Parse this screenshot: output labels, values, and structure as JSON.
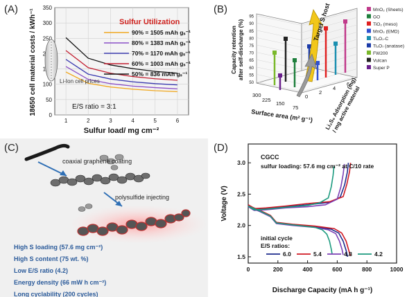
{
  "panel_a": {
    "letter": "(A)",
    "ylabel": "18650 cell material costs / kWh⁻¹",
    "xlabel": "Sulfur load/ mg cm⁻²",
    "legend_title": "Sulfur Utilization",
    "liion_label": "Li-Ion cell prices",
    "es_ratio": "E/S ratio = 3:1",
    "xticks": [
      "1",
      "2",
      "3",
      "4",
      "5",
      "6"
    ],
    "yticks": [
      "0",
      "50",
      "100",
      "150",
      "200",
      "250",
      "300",
      "350"
    ]
  },
  "panel_b": {
    "letter": "(B)",
    "zlabel_1": "Capacity retention",
    "zlabel_2": "after self-discharge (%)",
    "xlabel": "Surface area (m² g⁻¹)",
    "ylabel_1": "Li₂S₆ Adsorption (mg)",
    "ylabel_2": "/ mg active material",
    "target_label": "Target S host",
    "zticks": [
      "50",
      "55",
      "60",
      "65",
      "70",
      "75",
      "80",
      "85",
      "90",
      "95"
    ],
    "xticks": [
      "300",
      "225",
      "150",
      "75"
    ],
    "yticks": [
      "0",
      "2",
      "4",
      "6"
    ],
    "legend": [
      {
        "label": "MnO₂ (Sheets)",
        "color": "#c0398a"
      },
      {
        "label": "GO",
        "color": "#1e7f3c"
      },
      {
        "label": "TiO₂ (meso)",
        "color": "#e02020"
      },
      {
        "label": "MnO₂ (EMD)",
        "color": "#3050d0"
      },
      {
        "label": "Ti₄O₇-C",
        "color": "#1a8fb0"
      },
      {
        "label": "Ti₄O₇ (anatase)",
        "color": "#1a3aa8"
      },
      {
        "label": "FW200",
        "color": "#7ab82a"
      },
      {
        "label": "Vulcan",
        "color": "#222222"
      },
      {
        "label": "Super P",
        "color": "#6a1f8c"
      }
    ]
  },
  "panel_c": {
    "letter": "(C)",
    "step1": "coaxial graphene coating",
    "step2": "polysulfide injecting",
    "features": [
      "High S loading (57.6 mg cm⁻²)",
      "High S content (75 wt. %)",
      "Low E/S ratio (4.2)",
      "Energy density (66 mW h cm⁻²)",
      "Long cyclability (200 cycles)"
    ]
  },
  "panel_d": {
    "letter": "(D)",
    "title": "CGCC",
    "subtitle": "sulfur loading: 57.6 mg cm⁻² at C/10 rate",
    "legend_title_1": "initial cycle",
    "legend_title_2": "E/S ratios:",
    "xlabel": "Discharge Capacity (mA h g⁻¹)",
    "ylabel": "Voltage (V)",
    "xticks": [
      "0",
      "200",
      "400",
      "600",
      "800",
      "1000"
    ],
    "yticks": [
      "1.5",
      "2.0",
      "2.5",
      "3.0"
    ]
  },
  "chart_data": [
    {
      "type": "line",
      "panel": "A",
      "title": "",
      "xlabel": "Sulfur load/ mg cm⁻²",
      "ylabel": "18650 cell material costs / kWh⁻¹",
      "xlim": [
        0.5,
        6.5
      ],
      "ylim": [
        0,
        350
      ],
      "x": [
        1,
        2,
        3,
        4,
        5,
        6
      ],
      "series": [
        {
          "name": "50% = 836 mAh gₛ⁻¹",
          "color": "#111111",
          "values": [
            252,
            185,
            163,
            151,
            142,
            136
          ]
        },
        {
          "name": "60% = 1003 mAh gₛ⁻¹",
          "color": "#c21d2f",
          "values": [
            210,
            154,
            136,
            125,
            118,
            113
          ]
        },
        {
          "name": "70% = 1170 mAh gₛ⁻¹",
          "color": "#3b3bb0",
          "values": [
            181,
            133,
            117,
            108,
            102,
            98
          ]
        },
        {
          "name": "80% = 1383 mAh gₛ⁻¹",
          "color": "#8a4ec6",
          "values": [
            158,
            116,
            102,
            94,
            89,
            85
          ]
        },
        {
          "name": "90% = 1505 mAh gₛ⁻¹",
          "color": "#f0a821",
          "values": [
            140,
            103,
            91,
            84,
            79,
            76
          ]
        }
      ],
      "grid": true,
      "legend": "right"
    },
    {
      "type": "line",
      "panel": "D",
      "title": "CGCC",
      "xlabel": "Discharge Capacity (mA h g⁻¹)",
      "ylabel": "Voltage (V)",
      "xlim": [
        0,
        1000
      ],
      "ylim": [
        1.4,
        3.3
      ],
      "series": [
        {
          "name": "6.0",
          "color": "#1c2a8c",
          "charge": {
            "x": [
              0,
              40,
              120,
              250,
              400,
              550,
              620,
              650,
              668,
              675
            ],
            "y": [
              2.32,
              2.25,
              2.27,
              2.3,
              2.33,
              2.37,
              2.45,
              2.65,
              2.85,
              3.0
            ]
          },
          "discharge": {
            "x": [
              0,
              30,
              80,
              150,
              190,
              300,
              450,
              560,
              610,
              640,
              660,
              670
            ],
            "y": [
              2.32,
              2.28,
              2.23,
              2.15,
              2.04,
              2.01,
              1.98,
              1.94,
              1.88,
              1.75,
              1.6,
              1.5
            ]
          }
        },
        {
          "name": "5.4",
          "color": "#d01722",
          "charge": {
            "x": [
              0,
              40,
              120,
              250,
              400,
              550,
              640,
              665,
              683,
              690
            ],
            "y": [
              2.33,
              2.27,
              2.28,
              2.31,
              2.35,
              2.38,
              2.46,
              2.66,
              2.86,
              3.0
            ]
          },
          "discharge": {
            "x": [
              0,
              30,
              80,
              150,
              190,
              300,
              450,
              580,
              630,
              660,
              678,
              688
            ],
            "y": [
              2.33,
              2.29,
              2.24,
              2.16,
              2.05,
              2.02,
              1.99,
              1.95,
              1.88,
              1.75,
              1.6,
              1.52
            ]
          }
        },
        {
          "name": "4.8",
          "color": "#7b3fb5",
          "charge": {
            "x": [
              0,
              40,
              120,
              250,
              400,
              520,
              600,
              625,
              640,
              648
            ],
            "y": [
              2.3,
              2.24,
              2.25,
              2.28,
              2.3,
              2.33,
              2.42,
              2.62,
              2.82,
              2.98
            ]
          },
          "discharge": {
            "x": [
              0,
              30,
              80,
              150,
              190,
              300,
              450,
              540,
              590,
              615,
              632,
              640
            ],
            "y": [
              2.3,
              2.27,
              2.22,
              2.14,
              2.03,
              2.0,
              1.97,
              1.93,
              1.87,
              1.75,
              1.62,
              1.53
            ]
          }
        },
        {
          "name": "4.2",
          "color": "#1b9a7e",
          "charge": {
            "x": [
              0,
              40,
              120,
              250,
              400,
              480,
              540,
              560,
              572,
              578
            ],
            "y": [
              2.31,
              2.25,
              2.26,
              2.29,
              2.32,
              2.36,
              2.44,
              2.62,
              2.8,
              2.94
            ]
          },
          "discharge": {
            "x": [
              0,
              30,
              80,
              150,
              190,
              300,
              450,
              500,
              530,
              548,
              560,
              565
            ],
            "y": [
              2.31,
              2.28,
              2.23,
              2.15,
              2.04,
              2.01,
              1.97,
              1.93,
              1.86,
              1.75,
              1.62,
              1.55
            ]
          }
        }
      ],
      "grid": false,
      "legend": "bottom-left"
    }
  ]
}
